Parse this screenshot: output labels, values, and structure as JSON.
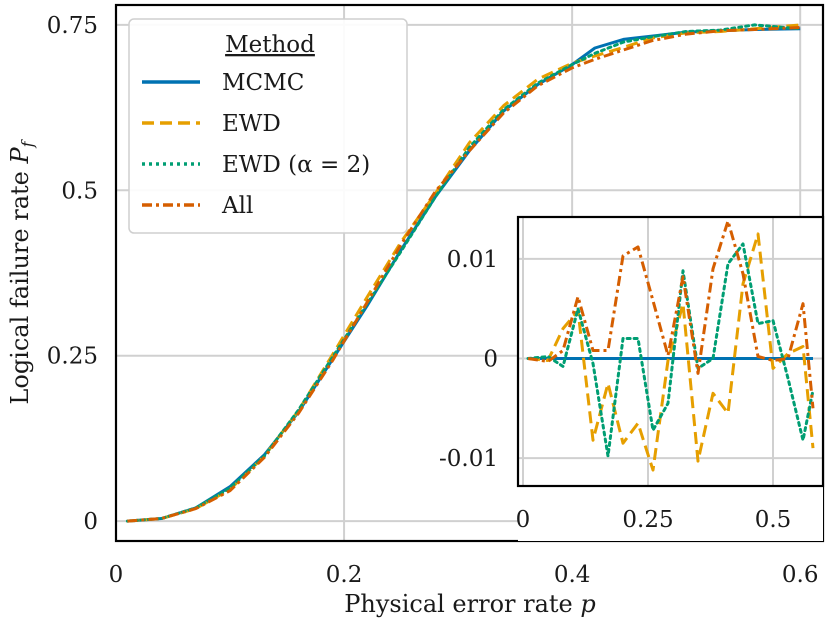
{
  "chart_data": {
    "type": "line",
    "xlabel": "Physical error rate",
    "xlabel_symbol": "p",
    "ylabel": "Logical failure rate",
    "ylabel_symbol": "P",
    "ylabel_subscript": "f",
    "xlim": [
      0,
      0.62
    ],
    "ylim": [
      -0.03,
      0.78
    ],
    "xticks": [
      0,
      0.2,
      0.4,
      0.6
    ],
    "xtick_labels": [
      "0",
      "0.2",
      "0.4",
      "0.6"
    ],
    "yticks": [
      0,
      0.25,
      0.5,
      0.75
    ],
    "ytick_labels": [
      "0",
      "0.25",
      "0.5",
      "0.75"
    ],
    "grid": true,
    "legend": {
      "title": "Method",
      "placement": "top-left",
      "entries": [
        "MCMC",
        "EWD",
        "EWD (α = 2)",
        "All"
      ]
    },
    "x": [
      0.01,
      0.04,
      0.07,
      0.1,
      0.13,
      0.16,
      0.19,
      0.22,
      0.25,
      0.28,
      0.31,
      0.34,
      0.37,
      0.4,
      0.42,
      0.445,
      0.47,
      0.5,
      0.53,
      0.56,
      0.6
    ],
    "series": [
      {
        "name": "MCMC",
        "color": "#0072b2",
        "dash": "solid",
        "values": [
          0.0,
          0.004,
          0.02,
          0.052,
          0.1,
          0.165,
          0.245,
          0.325,
          0.41,
          0.49,
          0.56,
          0.62,
          0.66,
          0.69,
          0.715,
          0.728,
          0.733,
          0.739,
          0.741,
          0.743,
          0.744
        ]
      },
      {
        "name": "EWD",
        "color": "#e69f00",
        "dash": "dashed",
        "values": [
          0.0,
          0.004,
          0.019,
          0.048,
          0.098,
          0.167,
          0.252,
          0.338,
          0.422,
          0.495,
          0.572,
          0.628,
          0.668,
          0.692,
          0.703,
          0.716,
          0.73,
          0.738,
          0.74,
          0.744,
          0.75
        ]
      },
      {
        "name": "EWD (α = 2)",
        "color": "#009e73",
        "dash": "dotted",
        "values": [
          0.0,
          0.004,
          0.02,
          0.05,
          0.098,
          0.168,
          0.248,
          0.328,
          0.408,
          0.49,
          0.565,
          0.622,
          0.662,
          0.69,
          0.707,
          0.724,
          0.732,
          0.74,
          0.742,
          0.75,
          0.744
        ]
      },
      {
        "name": "All",
        "color": "#d55e00",
        "dash": "dashdot",
        "values": [
          0.0,
          0.004,
          0.019,
          0.046,
          0.096,
          0.163,
          0.243,
          0.33,
          0.418,
          0.498,
          0.56,
          0.617,
          0.658,
          0.685,
          0.698,
          0.712,
          0.726,
          0.736,
          0.741,
          0.743,
          0.746
        ]
      }
    ],
    "inset": {
      "xlim": [
        -0.01,
        0.6
      ],
      "ylim": [
        -0.0128,
        0.0142
      ],
      "xticks": [
        0,
        0.25,
        0.5
      ],
      "xtick_labels": [
        "0",
        "0.25",
        "0.5"
      ],
      "yticks": [
        -0.01,
        0,
        0.01
      ],
      "ytick_labels": [
        "-0.01",
        "0",
        "0.01"
      ],
      "grid": true,
      "x": [
        0.01,
        0.05,
        0.08,
        0.11,
        0.14,
        0.17,
        0.2,
        0.23,
        0.26,
        0.29,
        0.32,
        0.35,
        0.38,
        0.41,
        0.44,
        0.47,
        0.5,
        0.53,
        0.56,
        0.58
      ],
      "series": [
        {
          "name": "MCMC",
          "color": "#0072b2",
          "dash": "solid",
          "values": [
            0,
            0,
            0,
            0,
            0,
            0,
            0,
            0,
            0,
            0,
            0,
            0,
            0,
            0,
            0,
            0,
            0,
            0,
            0,
            0
          ]
        },
        {
          "name": "EWD",
          "color": "#e69f00",
          "dash": "dashed",
          "values": [
            0.0,
            -0.0002,
            0.003,
            0.0048,
            -0.0082,
            -0.0025,
            -0.0085,
            -0.0065,
            -0.0112,
            -0.0002,
            0.0055,
            -0.0103,
            -0.0035,
            -0.0055,
            0.0075,
            0.0125,
            -0.001,
            0.0005,
            0.0012,
            -0.009
          ]
        },
        {
          "name": "EWD (α = 2)",
          "color": "#009e73",
          "dash": "dotted",
          "values": [
            0.0,
            0.0002,
            -0.0008,
            0.005,
            -0.0005,
            -0.0098,
            0.002,
            0.002,
            -0.0072,
            -0.0045,
            0.0088,
            -0.001,
            0.0,
            0.0095,
            0.0115,
            0.0035,
            0.0038,
            -0.002,
            -0.0082,
            -0.0032
          ]
        },
        {
          "name": "All",
          "color": "#d55e00",
          "dash": "dashdot",
          "values": [
            0.0,
            -0.0003,
            0.0008,
            0.0062,
            0.0008,
            0.0008,
            0.0103,
            0.0112,
            0.0058,
            0.0003,
            0.0082,
            -0.0015,
            0.009,
            0.0138,
            0.0085,
            0.0002,
            -0.0002,
            0.0,
            0.0055,
            -0.005
          ]
        }
      ]
    }
  }
}
